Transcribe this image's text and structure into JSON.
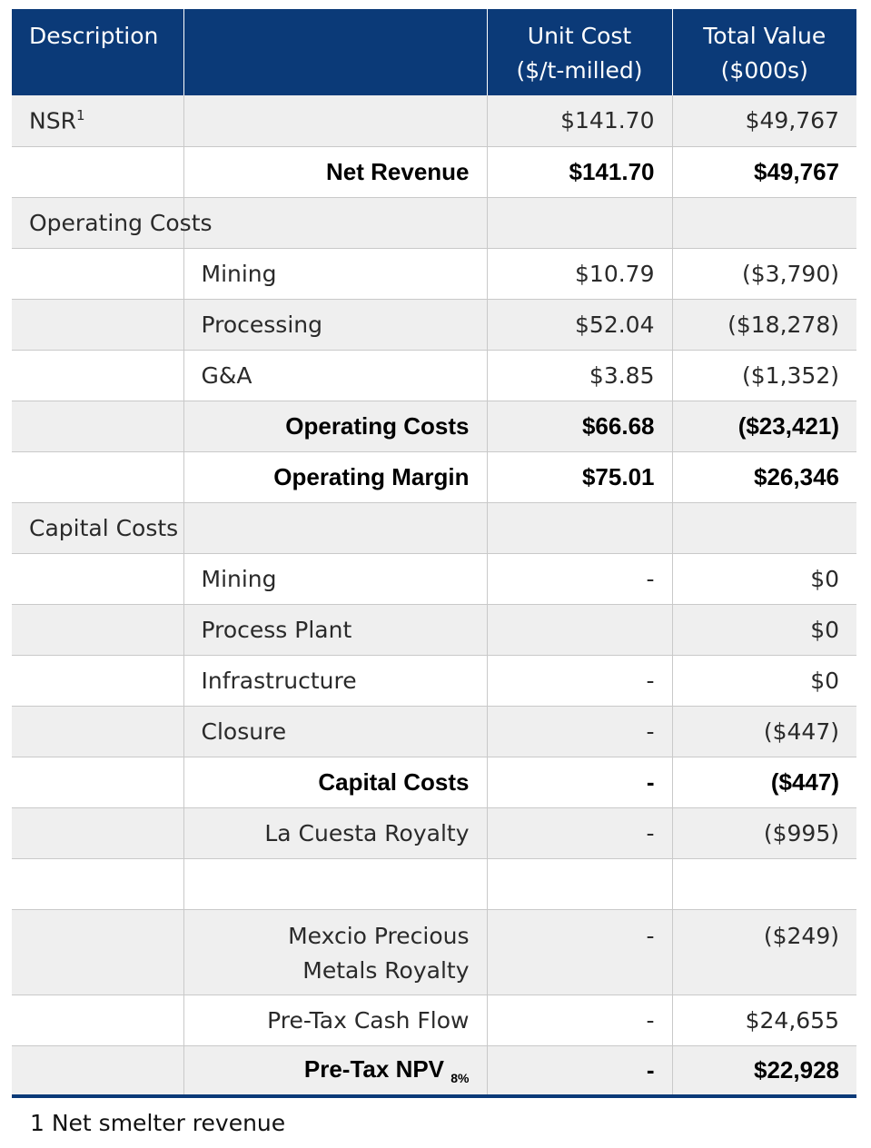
{
  "header": {
    "col1": "Description",
    "col2": "",
    "col3_line1": "Unit Cost",
    "col3_line2": "($/t-milled)",
    "col4_line1": "Total Value",
    "col4_line2": "($000s)"
  },
  "rows": [
    {
      "desc": "NSR",
      "sup": "1",
      "item": "",
      "unit": "$141.70",
      "total": "$49,767"
    },
    {
      "desc": "",
      "item": "Net Revenue",
      "unit": "$141.70",
      "total": "$49,767"
    },
    {
      "desc": "Operating Costs",
      "item": "",
      "unit": "",
      "total": ""
    },
    {
      "desc": "",
      "item": "Mining",
      "unit": "$10.79",
      "total": "($3,790)"
    },
    {
      "desc": "",
      "item": "Processing",
      "unit": "$52.04",
      "total": "($18,278)"
    },
    {
      "desc": "",
      "item": "G&A",
      "unit": "$3.85",
      "total": "($1,352)"
    },
    {
      "desc": "",
      "item": "Operating Costs",
      "unit": "$66.68",
      "total": "($23,421)"
    },
    {
      "desc": "",
      "item": "Operating Margin",
      "unit": "$75.01",
      "total": "$26,346"
    },
    {
      "desc": "Capital Costs",
      "item": "",
      "unit": "",
      "total": ""
    },
    {
      "desc": "",
      "item": "Mining",
      "unit": "-",
      "total": "$0"
    },
    {
      "desc": "",
      "item": "Process Plant",
      "unit": "",
      "total": "$0"
    },
    {
      "desc": "",
      "item": "Infrastructure",
      "unit": "-",
      "total": "$0"
    },
    {
      "desc": "",
      "item": "Closure",
      "unit": "-",
      "total": "($447)"
    },
    {
      "desc": "",
      "item": "Capital Costs",
      "unit": "-",
      "total": "($447)"
    },
    {
      "desc": "",
      "item": "La Cuesta Royalty",
      "unit": "-",
      "total": "($995)"
    },
    {
      "desc": "",
      "item": "",
      "unit": "",
      "total": ""
    },
    {
      "desc": "",
      "item_line1": "Mexcio Precious",
      "item_line2": "Metals Royalty",
      "unit": "-",
      "total": "($249)"
    },
    {
      "desc": "",
      "item": "Pre-Tax Cash Flow",
      "unit": "-",
      "total": "$24,655"
    },
    {
      "desc": "",
      "item": "Pre-Tax NPV",
      "item_sub": "8%",
      "unit": "-",
      "total": "$22,928"
    }
  ],
  "footnote": "1 Net smelter revenue"
}
